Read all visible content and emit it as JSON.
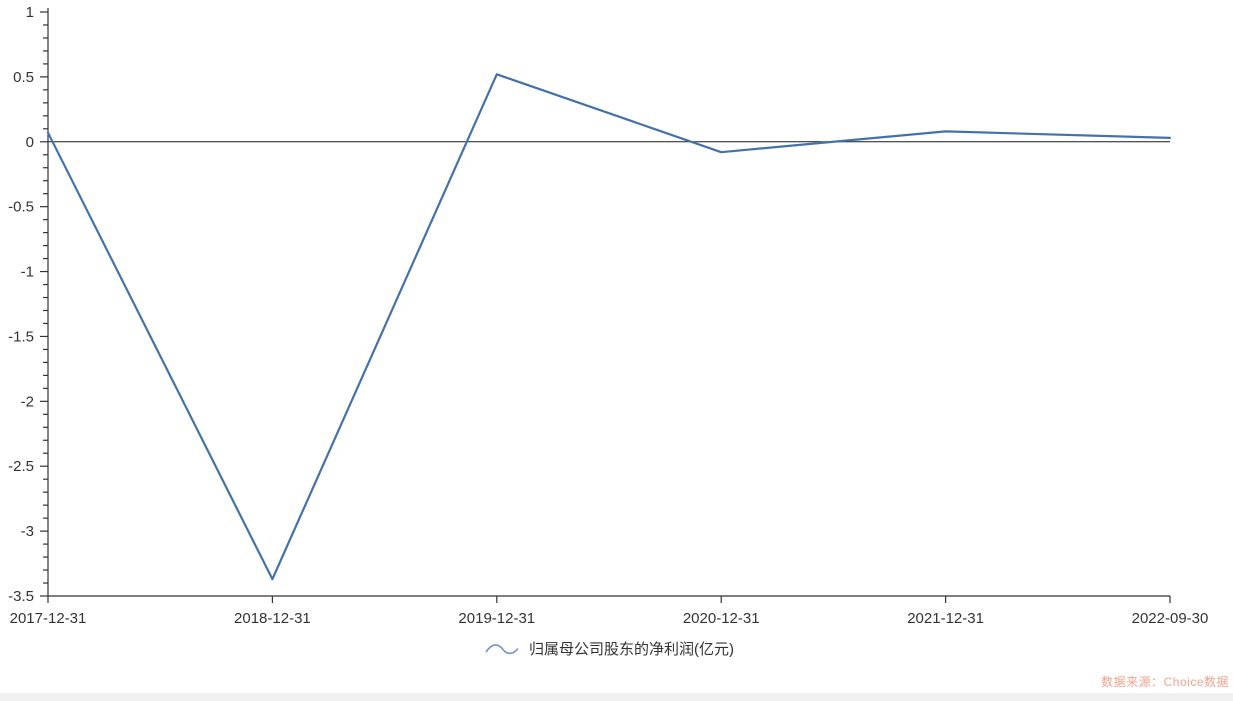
{
  "chart_data": {
    "type": "line",
    "title": "",
    "xlabel": "",
    "ylabel": "",
    "x": [
      "2017-12-31",
      "2018-12-31",
      "2019-12-31",
      "2020-12-31",
      "2021-12-31",
      "2022-09-30"
    ],
    "series": [
      {
        "name": "归属母公司股东的净利润(亿元)",
        "values": [
          0.07,
          -3.37,
          0.52,
          -0.08,
          0.08,
          0.03
        ]
      }
    ],
    "ylim": [
      -3.5,
      1
    ],
    "y_tick_labels": [
      "1",
      "0.5",
      "0",
      "-0.5",
      "-1",
      "-1.5",
      "-2",
      "-2.5",
      "-3",
      "-3.5"
    ],
    "y_major_tick_step": 0.5,
    "y_minor_tick_step": 0.1,
    "grid": false,
    "zero_line": true,
    "legend_position": "bottom"
  },
  "legend": {
    "label": "归属母公司股东的净利润(亿元)"
  },
  "watermark": {
    "text": "数据来源：Choice数据"
  },
  "colors": {
    "series_line": "#4472a8",
    "legend_marker": "#7495c3",
    "axis": "#333333",
    "tick_label": "#333333",
    "zero_line": "#1a1a1a",
    "watermark": "#f2a28e",
    "bottom_strip": "#f0f0f0"
  }
}
